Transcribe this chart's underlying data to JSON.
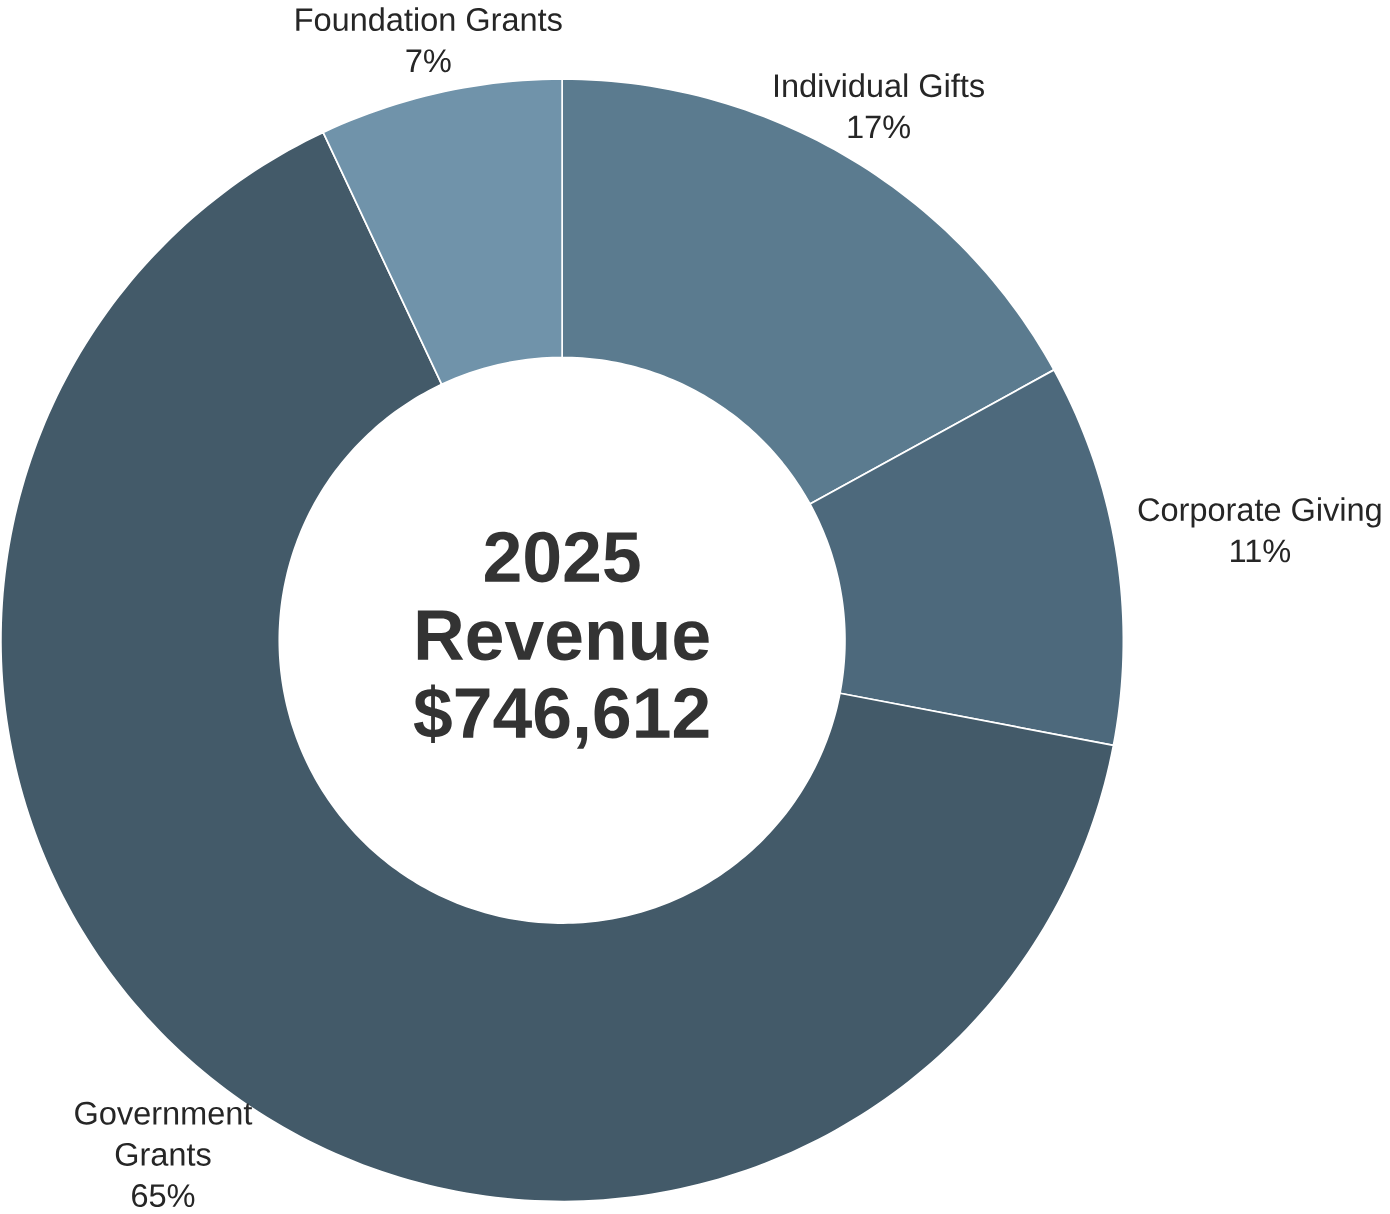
{
  "chart_data": {
    "type": "donut",
    "title": "2025 Revenue $746,612",
    "categories": [
      "Individual Gifts",
      "Corporate Giving",
      "Government Grants",
      "Foundation Grants"
    ],
    "values": [
      17,
      11,
      65,
      7
    ],
    "colors": [
      "#5b7b8f",
      "#4d697c",
      "#435a69",
      "#7093aa"
    ],
    "value_labels": [
      "17%",
      "11%",
      "65%",
      "7%"
    ]
  }
}
